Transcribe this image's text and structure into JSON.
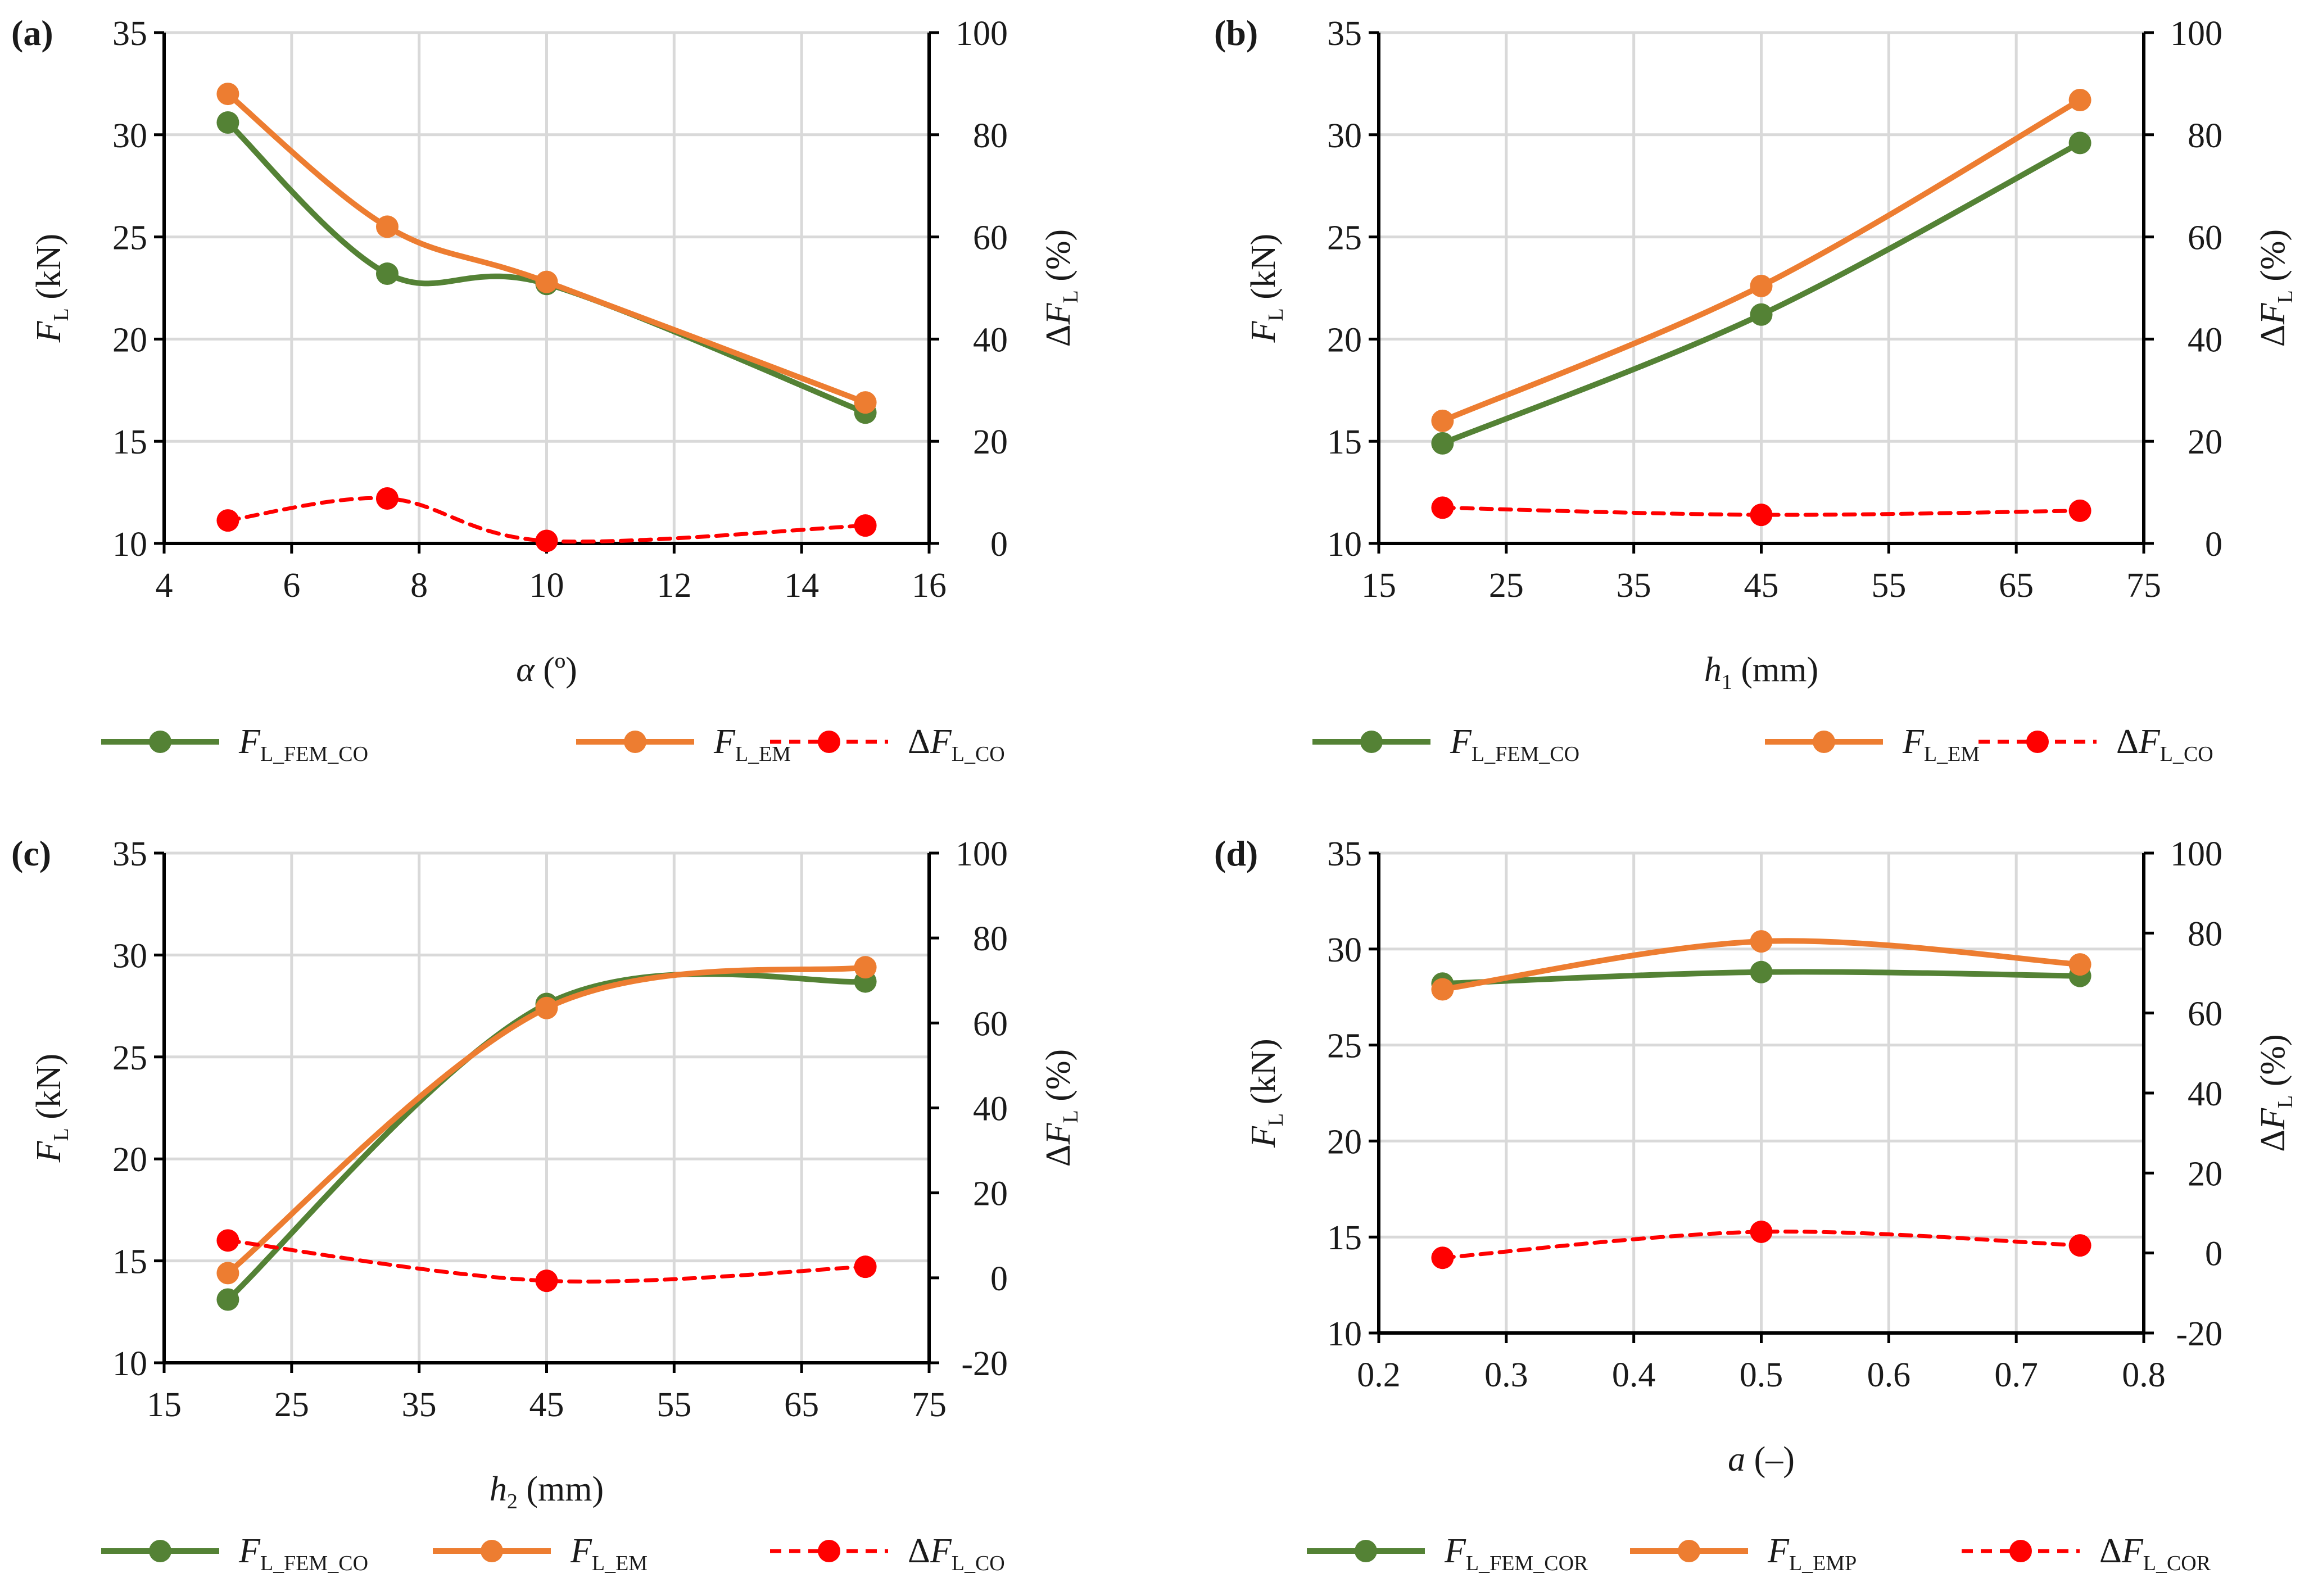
{
  "colors": {
    "fem": "#548235",
    "em": "#ED7D31",
    "delta": "#FF0000",
    "grid": "#D9D9D9",
    "axis": "#000000"
  },
  "chart_data": [
    {
      "panel_label": "(a)",
      "type": "line",
      "grid": true,
      "legend_position": "bottom",
      "xlabel": {
        "italic": "α",
        "sub": "",
        "rest": " (º)"
      },
      "y_left_label": {
        "italic": "F",
        "sub": "L",
        "rest": " (kN)"
      },
      "y_right_label": {
        "prefix": "Δ",
        "italic": "F",
        "sub": "L",
        "rest": " (%)"
      },
      "xlim": [
        4,
        16
      ],
      "x_ticks": [
        4,
        6,
        8,
        10,
        12,
        14,
        16
      ],
      "x_tick_labels": [
        "4",
        "6",
        "8",
        "10",
        "12",
        "14",
        "16"
      ],
      "ylim": [
        10,
        35
      ],
      "y_ticks": [
        10,
        15,
        20,
        25,
        30,
        35
      ],
      "y_tick_labels": [
        "10",
        "15",
        "20",
        "25",
        "30",
        "35"
      ],
      "y2lim": [
        0,
        100
      ],
      "y2_ticks": [
        0,
        20,
        40,
        60,
        80,
        100
      ],
      "y2_tick_labels": [
        "0",
        "20",
        "40",
        "60",
        "80",
        "100"
      ],
      "series": [
        {
          "name": {
            "italic": "F",
            "sub": "L_FEM_CO"
          },
          "color": "#548235",
          "axis": "left",
          "dashed": false,
          "x": [
            5,
            7.5,
            10,
            15
          ],
          "y": [
            30.6,
            23.2,
            22.7,
            16.4
          ]
        },
        {
          "name": {
            "italic": "F",
            "sub": "L_EM"
          },
          "color": "#ED7D31",
          "axis": "left",
          "dashed": false,
          "x": [
            5,
            7.5,
            10,
            15
          ],
          "y": [
            32.0,
            25.5,
            22.8,
            16.9
          ]
        },
        {
          "name": {
            "prefix": "Δ",
            "italic": "F",
            "sub": "L_CO"
          },
          "color": "#FF0000",
          "axis": "right",
          "dashed": true,
          "x": [
            5,
            7.5,
            10,
            15
          ],
          "y": [
            4.5,
            8.8,
            0.5,
            3.5
          ]
        }
      ]
    },
    {
      "panel_label": "(b)",
      "type": "line",
      "grid": true,
      "legend_position": "bottom",
      "xlabel": {
        "italic": "h",
        "sub": "1",
        "rest": " (mm)"
      },
      "y_left_label": {
        "italic": "F",
        "sub": "L",
        "rest": " (kN)"
      },
      "y_right_label": {
        "prefix": "Δ",
        "italic": "F",
        "sub": "L",
        "rest": " (%)"
      },
      "xlim": [
        15,
        75
      ],
      "x_ticks": [
        15,
        25,
        35,
        45,
        55,
        65,
        75
      ],
      "x_tick_labels": [
        "15",
        "25",
        "35",
        "45",
        "55",
        "65",
        "75"
      ],
      "ylim": [
        10,
        35
      ],
      "y_ticks": [
        10,
        15,
        20,
        25,
        30,
        35
      ],
      "y_tick_labels": [
        "10",
        "15",
        "20",
        "25",
        "30",
        "35"
      ],
      "y2lim": [
        0,
        100
      ],
      "y2_ticks": [
        0,
        20,
        40,
        60,
        80,
        100
      ],
      "y2_tick_labels": [
        "0",
        "20",
        "40",
        "60",
        "80",
        "100"
      ],
      "series": [
        {
          "name": {
            "italic": "F",
            "sub": "L_FEM_CO"
          },
          "color": "#548235",
          "axis": "left",
          "dashed": false,
          "x": [
            20,
            45,
            70
          ],
          "y": [
            14.9,
            21.2,
            29.6
          ]
        },
        {
          "name": {
            "italic": "F",
            "sub": "L_EM"
          },
          "color": "#ED7D31",
          "axis": "left",
          "dashed": false,
          "x": [
            20,
            45,
            70
          ],
          "y": [
            16.0,
            22.6,
            31.7
          ]
        },
        {
          "name": {
            "prefix": "Δ",
            "italic": "F",
            "sub": "L_CO"
          },
          "color": "#FF0000",
          "axis": "right",
          "dashed": true,
          "x": [
            20,
            45,
            70
          ],
          "y": [
            7.0,
            5.6,
            6.4
          ]
        }
      ]
    },
    {
      "panel_label": "(c)",
      "type": "line",
      "grid": true,
      "legend_position": "bottom",
      "xlabel": {
        "italic": "h",
        "sub": "2",
        "rest": " (mm)"
      },
      "y_left_label": {
        "italic": "F",
        "sub": "L",
        "rest": " (kN)"
      },
      "y_right_label": {
        "prefix": "Δ",
        "italic": "F",
        "sub": "L",
        "rest": " (%)"
      },
      "xlim": [
        15,
        75
      ],
      "x_ticks": [
        15,
        25,
        35,
        45,
        55,
        65,
        75
      ],
      "x_tick_labels": [
        "15",
        "25",
        "35",
        "45",
        "55",
        "65",
        "75"
      ],
      "ylim": [
        10,
        35
      ],
      "y_ticks": [
        10,
        15,
        20,
        25,
        30,
        35
      ],
      "y_tick_labels": [
        "10",
        "15",
        "20",
        "25",
        "30",
        "35"
      ],
      "y2lim": [
        -20,
        100
      ],
      "y2_ticks": [
        -20,
        0,
        20,
        40,
        60,
        80,
        100
      ],
      "y2_tick_labels": [
        "-20",
        "0",
        "20",
        "40",
        "60",
        "80",
        "100"
      ],
      "series": [
        {
          "name": {
            "italic": "F",
            "sub": "L_FEM_CO"
          },
          "color": "#548235",
          "axis": "left",
          "dashed": false,
          "x": [
            20,
            45,
            70
          ],
          "y": [
            13.1,
            27.6,
            28.7
          ]
        },
        {
          "name": {
            "italic": "F",
            "sub": "L_EM"
          },
          "color": "#ED7D31",
          "axis": "left",
          "dashed": false,
          "x": [
            20,
            45,
            70
          ],
          "y": [
            14.4,
            27.4,
            29.4
          ]
        },
        {
          "name": {
            "prefix": "Δ",
            "italic": "F",
            "sub": "L_CO"
          },
          "color": "#FF0000",
          "axis": "right",
          "dashed": true,
          "x": [
            20,
            45,
            70
          ],
          "y": [
            8.8,
            -0.7,
            2.6
          ]
        }
      ]
    },
    {
      "panel_label": "(d)",
      "type": "line",
      "grid": true,
      "legend_position": "bottom",
      "xlabel": {
        "italic": "a",
        "sub": "",
        "rest": " (–)"
      },
      "y_left_label": {
        "italic": "F",
        "sub": "L",
        "rest": " (kN)"
      },
      "y_right_label": {
        "prefix": "Δ",
        "italic": "F",
        "sub": "L",
        "rest": " (%)"
      },
      "xlim": [
        0.2,
        0.8
      ],
      "x_ticks": [
        0.2,
        0.3,
        0.4,
        0.5,
        0.6,
        0.7,
        0.8
      ],
      "x_tick_labels": [
        "0.2",
        "0.3",
        "0.4",
        "0.5",
        "0.6",
        "0.7",
        "0.8"
      ],
      "ylim": [
        10,
        35
      ],
      "y_ticks": [
        10,
        15,
        20,
        25,
        30,
        35
      ],
      "y_tick_labels": [
        "10",
        "15",
        "20",
        "25",
        "30",
        "35"
      ],
      "y2lim": [
        -20,
        100
      ],
      "y2_ticks": [
        -20,
        0,
        20,
        40,
        60,
        80,
        100
      ],
      "y2_tick_labels": [
        "-20",
        "0",
        "20",
        "40",
        "60",
        "80",
        "100"
      ],
      "series": [
        {
          "name": {
            "italic": "F",
            "sub": "L_FEM_COR"
          },
          "color": "#548235",
          "axis": "left",
          "dashed": false,
          "x": [
            0.25,
            0.5,
            0.75
          ],
          "y": [
            28.2,
            28.8,
            28.6
          ]
        },
        {
          "name": {
            "italic": "F",
            "sub": "L_EMP"
          },
          "color": "#ED7D31",
          "axis": "left",
          "dashed": false,
          "x": [
            0.25,
            0.5,
            0.75
          ],
          "y": [
            27.9,
            30.4,
            29.2
          ]
        },
        {
          "name": {
            "prefix": "Δ",
            "italic": "F",
            "sub": "L_COR"
          },
          "color": "#FF0000",
          "axis": "right",
          "dashed": true,
          "x": [
            0.25,
            0.5,
            0.75
          ],
          "y": [
            -1.2,
            5.3,
            1.9
          ]
        }
      ]
    }
  ]
}
